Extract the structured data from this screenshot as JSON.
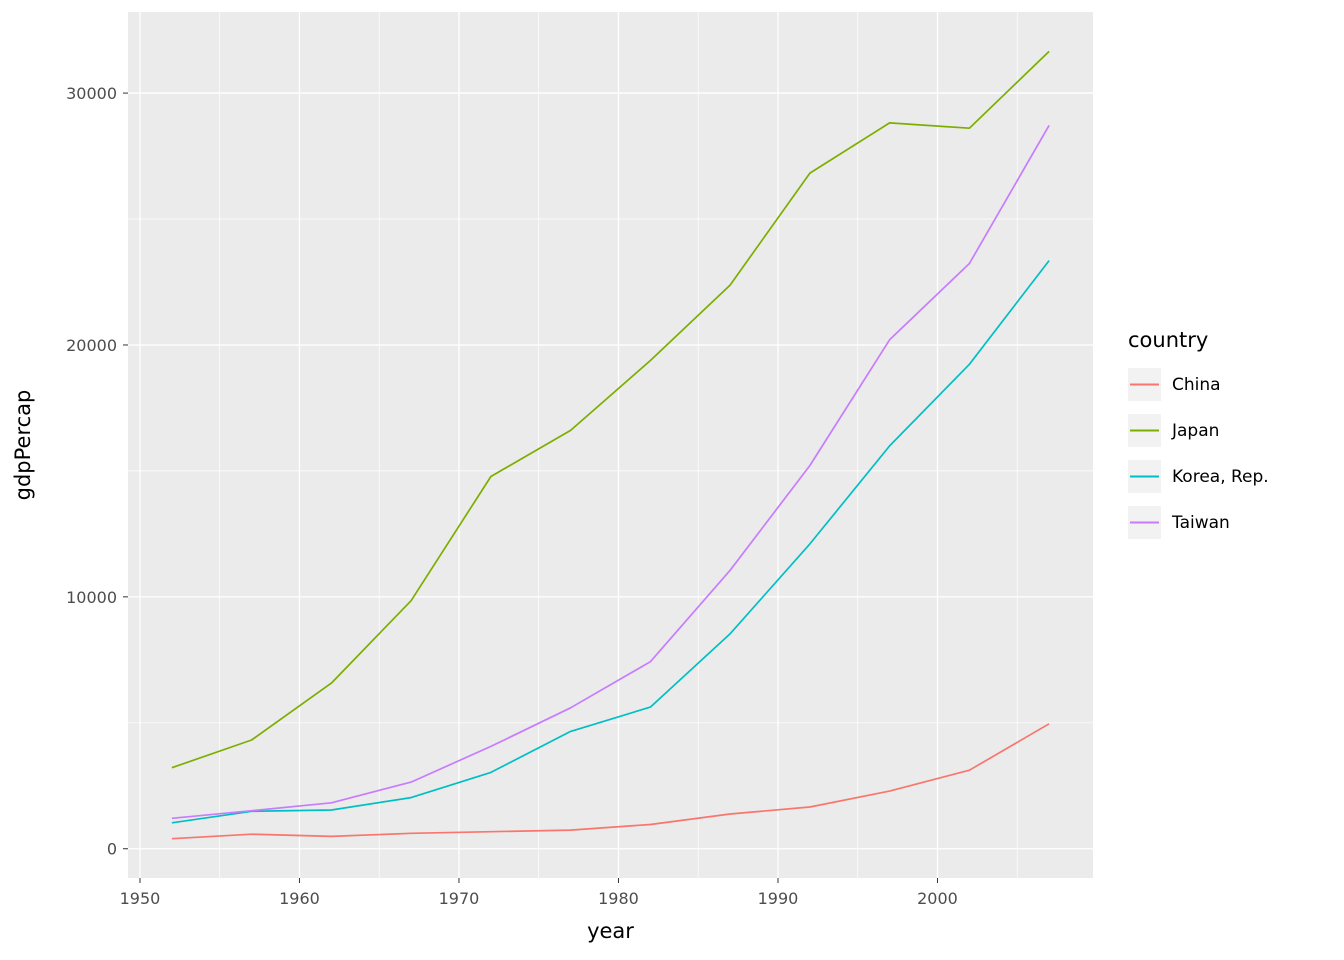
{
  "chart_data": {
    "type": "line",
    "title": "",
    "xlabel": "year",
    "ylabel": "gdpPercap",
    "legend_title": "country",
    "legend_position": "right",
    "grid": true,
    "x": [
      1952,
      1957,
      1962,
      1967,
      1972,
      1977,
      1982,
      1987,
      1992,
      1997,
      2002,
      2007
    ],
    "series": [
      {
        "name": "China",
        "color": "#F8766D",
        "values": [
          400,
          576,
          488,
          613,
          677,
          741,
          962,
          1379,
          1656,
          2289,
          3119,
          4959
        ]
      },
      {
        "name": "Japan",
        "color": "#7CAE00",
        "values": [
          3217,
          4318,
          6577,
          9848,
          14779,
          16610,
          19384,
          22376,
          26825,
          28817,
          28605,
          31656
        ]
      },
      {
        "name": "Korea, Rep.",
        "color": "#00BFC4",
        "values": [
          1031,
          1488,
          1536,
          2029,
          3031,
          4657,
          5623,
          8533,
          12104,
          15994,
          19234,
          23348
        ]
      },
      {
        "name": "Taiwan",
        "color": "#C77CFF",
        "values": [
          1207,
          1508,
          1823,
          2644,
          4063,
          5597,
          7426,
          11055,
          15216,
          20207,
          23235,
          28718
        ]
      }
    ],
    "x_ticks": [
      1950,
      1960,
      1970,
      1980,
      1990,
      2000
    ],
    "x_minor_ticks": [
      1955,
      1965,
      1975,
      1985,
      1995,
      2005
    ],
    "y_ticks": [
      0,
      10000,
      20000,
      30000
    ],
    "y_minor_ticks": [
      5000,
      15000,
      25000
    ],
    "x_domain": [
      1949.25,
      2009.75
    ],
    "y_domain": [
      -1162,
      33219
    ],
    "xlim": [
      1952,
      2007
    ],
    "ylim": [
      400,
      31656
    ],
    "colors": {
      "panel_background": "#EBEBEB",
      "grid_line": "#FFFFFF",
      "tick_mark": "#333333",
      "tick_label": "#4D4D4D",
      "axis_title": "#000000",
      "legend_key_background": "#F2F2F2"
    }
  }
}
